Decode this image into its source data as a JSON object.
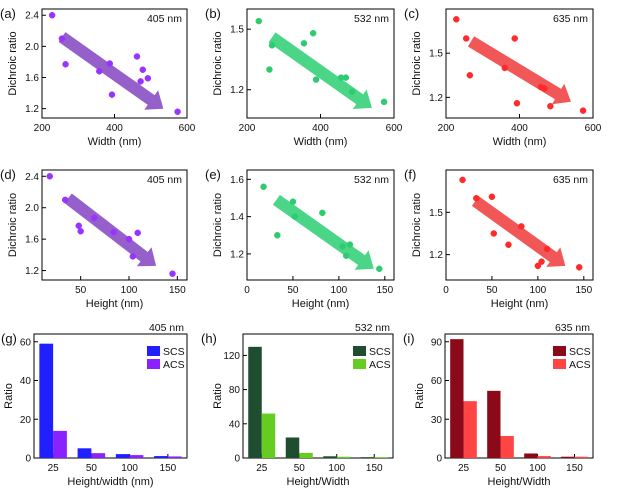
{
  "colors": {
    "purple": "#9a33ff",
    "green": "#2ecc71",
    "red": "#ff2a2a",
    "arrow_purple": "#8a4fc4",
    "arrow_green": "#37d17a",
    "arrow_red": "#f04545",
    "blue_bar": "#1f1fff",
    "violet_bar": "#8a22ff",
    "dkgreen_bar": "#1e4d2f",
    "ltgreen_bar": "#66cc22",
    "dkred_bar": "#8b0a1a",
    "ltred_bar": "#ff4444"
  },
  "chart_data": [
    {
      "panel": "(a)",
      "type": "scatter",
      "tag": "405 nm",
      "xlabel": "Width (nm)",
      "ylabel": "Dichroic ratio",
      "xlim": [
        200,
        600
      ],
      "ylim": [
        1.08,
        2.48
      ],
      "xticks": [
        "200",
        "400",
        "600"
      ],
      "xtick_values": [
        200,
        400,
        600
      ],
      "yticks": [
        "1.2",
        "1.6",
        "2.0",
        "2.4"
      ],
      "ytick_values": [
        1.2,
        1.6,
        2.0,
        2.4
      ],
      "color": "purple",
      "arrow_color": "arrow_purple",
      "arrow": {
        "from": [
          255,
          2.12
        ],
        "to": [
          535,
          1.2
        ]
      },
      "x": [
        228,
        255,
        265,
        358,
        387,
        393,
        462,
        472,
        478,
        492,
        574
      ],
      "y": [
        2.4,
        2.1,
        1.77,
        1.68,
        1.78,
        1.38,
        1.87,
        1.55,
        1.7,
        1.59,
        1.16
      ]
    },
    {
      "panel": "(b)",
      "type": "scatter",
      "tag": "532 nm",
      "xlabel": "Width (nm)",
      "ylabel": "Dichroic ratio",
      "xlim": [
        200,
        600
      ],
      "ylim": [
        1.06,
        1.6
      ],
      "xticks": [
        "200",
        "400",
        "600"
      ],
      "xtick_values": [
        200,
        400,
        600
      ],
      "yticks": [
        "1.2",
        "1.5"
      ],
      "ytick_values": [
        1.2,
        1.5
      ],
      "color": "green",
      "arrow_color": "arrow_green",
      "arrow": {
        "from": [
          268,
          1.46
        ],
        "to": [
          540,
          1.11
        ]
      },
      "x": [
        232,
        261,
        268,
        355,
        380,
        388,
        456,
        469,
        486,
        573
      ],
      "y": [
        1.54,
        1.3,
        1.42,
        1.43,
        1.48,
        1.25,
        1.26,
        1.26,
        1.19,
        1.14
      ]
    },
    {
      "panel": "(c)",
      "type": "scatter",
      "tag": "635 nm",
      "xlabel": "Width (nm)",
      "ylabel": "Dichroic ratio",
      "xlim": [
        200,
        600
      ],
      "ylim": [
        1.06,
        1.8
      ],
      "xticks": [
        "200",
        "400",
        "600"
      ],
      "xtick_values": [
        200,
        400,
        600
      ],
      "yticks": [
        "1.2",
        "1.5"
      ],
      "ytick_values": [
        1.2,
        1.5
      ],
      "color": "red",
      "arrow_color": "arrow_red",
      "arrow": {
        "from": [
          268,
          1.58
        ],
        "to": [
          540,
          1.17
        ]
      },
      "x": [
        228,
        255,
        265,
        360,
        387,
        393,
        458,
        468,
        484,
        573
      ],
      "y": [
        1.73,
        1.6,
        1.35,
        1.4,
        1.6,
        1.16,
        1.27,
        1.26,
        1.14,
        1.11
      ]
    },
    {
      "panel": "(d)",
      "type": "scatter",
      "tag": "405 nm",
      "xlabel": "Height (nm)",
      "ylabel": "Dichroic ratio",
      "xlim": [
        10,
        160
      ],
      "ylim": [
        1.08,
        2.48
      ],
      "xticks": [
        "50",
        "100",
        "150"
      ],
      "xtick_values": [
        50,
        100,
        150
      ],
      "yticks": [
        "1.2",
        "1.6",
        "2.0",
        "2.4"
      ],
      "ytick_values": [
        1.2,
        1.6,
        2.0,
        2.4
      ],
      "color": "purple",
      "arrow_color": "arrow_purple",
      "arrow": {
        "from": [
          37,
          2.12
        ],
        "to": [
          128,
          1.26
        ]
      },
      "x": [
        18,
        34,
        48,
        50,
        64,
        84,
        100,
        104,
        109,
        145
      ],
      "y": [
        2.4,
        2.1,
        1.77,
        1.7,
        1.87,
        1.69,
        1.6,
        1.38,
        1.68,
        1.16
      ]
    },
    {
      "panel": "(e)",
      "type": "scatter",
      "tag": "532 nm",
      "xlabel": "Height (nm)",
      "ylabel": "Dichroic ratio",
      "xlim": [
        0,
        160
      ],
      "ylim": [
        1.06,
        1.65
      ],
      "xticks": [
        "0",
        "50",
        "100",
        "150"
      ],
      "xtick_values": [
        0,
        50,
        100,
        150
      ],
      "yticks": [
        "1.2",
        "1.4",
        "1.6"
      ],
      "ytick_values": [
        1.2,
        1.4,
        1.6
      ],
      "color": "green",
      "arrow_color": "arrow_green",
      "arrow": {
        "from": [
          32,
          1.49
        ],
        "to": [
          138,
          1.12
        ]
      },
      "x": [
        18,
        33,
        50,
        52,
        82,
        104,
        108,
        112,
        144
      ],
      "y": [
        1.56,
        1.3,
        1.48,
        1.4,
        1.42,
        1.24,
        1.19,
        1.25,
        1.12
      ]
    },
    {
      "panel": "(f)",
      "type": "scatter",
      "tag": "635 nm",
      "xlabel": "Height (nm)",
      "ylabel": "Dichroic ratio",
      "xlim": [
        0,
        160
      ],
      "ylim": [
        1.02,
        1.8
      ],
      "xticks": [
        "0",
        "50",
        "100",
        "150"
      ],
      "xtick_values": [
        0,
        50,
        100,
        150
      ],
      "yticks": [
        "1.2",
        "1.5"
      ],
      "ytick_values": [
        1.2,
        1.5
      ],
      "color": "red",
      "arrow_color": "arrow_red",
      "arrow": {
        "from": [
          32,
          1.58
        ],
        "to": [
          130,
          1.12
        ]
      },
      "x": [
        18,
        33,
        50,
        52,
        68,
        82,
        100,
        104,
        110,
        145
      ],
      "y": [
        1.73,
        1.6,
        1.61,
        1.35,
        1.27,
        1.4,
        1.12,
        1.15,
        1.24,
        1.11
      ]
    },
    {
      "panel": "(g)",
      "type": "bar",
      "tag": "405 nm",
      "xlabel": "Height/width (nm)",
      "ylabel": "Ratio",
      "categories": [
        "25",
        "50",
        "100",
        "150"
      ],
      "ylim": [
        0,
        64
      ],
      "yticks": [
        "0",
        "20",
        "40",
        "60"
      ],
      "ytick_values": [
        0,
        20,
        40,
        60
      ],
      "series": [
        {
          "name": "SCS",
          "values": [
            59,
            5,
            2,
            1
          ],
          "color": "blue_bar"
        },
        {
          "name": "ACS",
          "values": [
            14,
            2.5,
            1.5,
            0.8
          ],
          "color": "violet_bar"
        }
      ]
    },
    {
      "panel": "(h)",
      "type": "bar",
      "tag": "532 nm",
      "xlabel": "Height/Width",
      "ylabel": "Ratio",
      "categories": [
        "25",
        "50",
        "100",
        "150"
      ],
      "ylim": [
        0,
        145
      ],
      "yticks": [
        "0",
        "40",
        "80",
        "120"
      ],
      "ytick_values": [
        0,
        40,
        80,
        120
      ],
      "series": [
        {
          "name": "SCS",
          "values": [
            130,
            24,
            2,
            1
          ],
          "color": "dkgreen_bar"
        },
        {
          "name": "ACS",
          "values": [
            52,
            6,
            1.5,
            1
          ],
          "color": "ltgreen_bar"
        }
      ]
    },
    {
      "panel": "(i)",
      "type": "bar",
      "tag": "635 nm",
      "xlabel": "Height/Width",
      "ylabel": "Ratio",
      "categories": [
        "25",
        "50",
        "100",
        "150"
      ],
      "ylim": [
        0,
        96
      ],
      "yticks": [
        "0",
        "30",
        "60",
        "90"
      ],
      "ytick_values": [
        0,
        30,
        60,
        90
      ],
      "series": [
        {
          "name": "SCS",
          "values": [
            92,
            52,
            3.5,
            1
          ],
          "color": "dkred_bar"
        },
        {
          "name": "ACS",
          "values": [
            44,
            17,
            1.5,
            1
          ],
          "color": "ltred_bar"
        }
      ]
    }
  ]
}
